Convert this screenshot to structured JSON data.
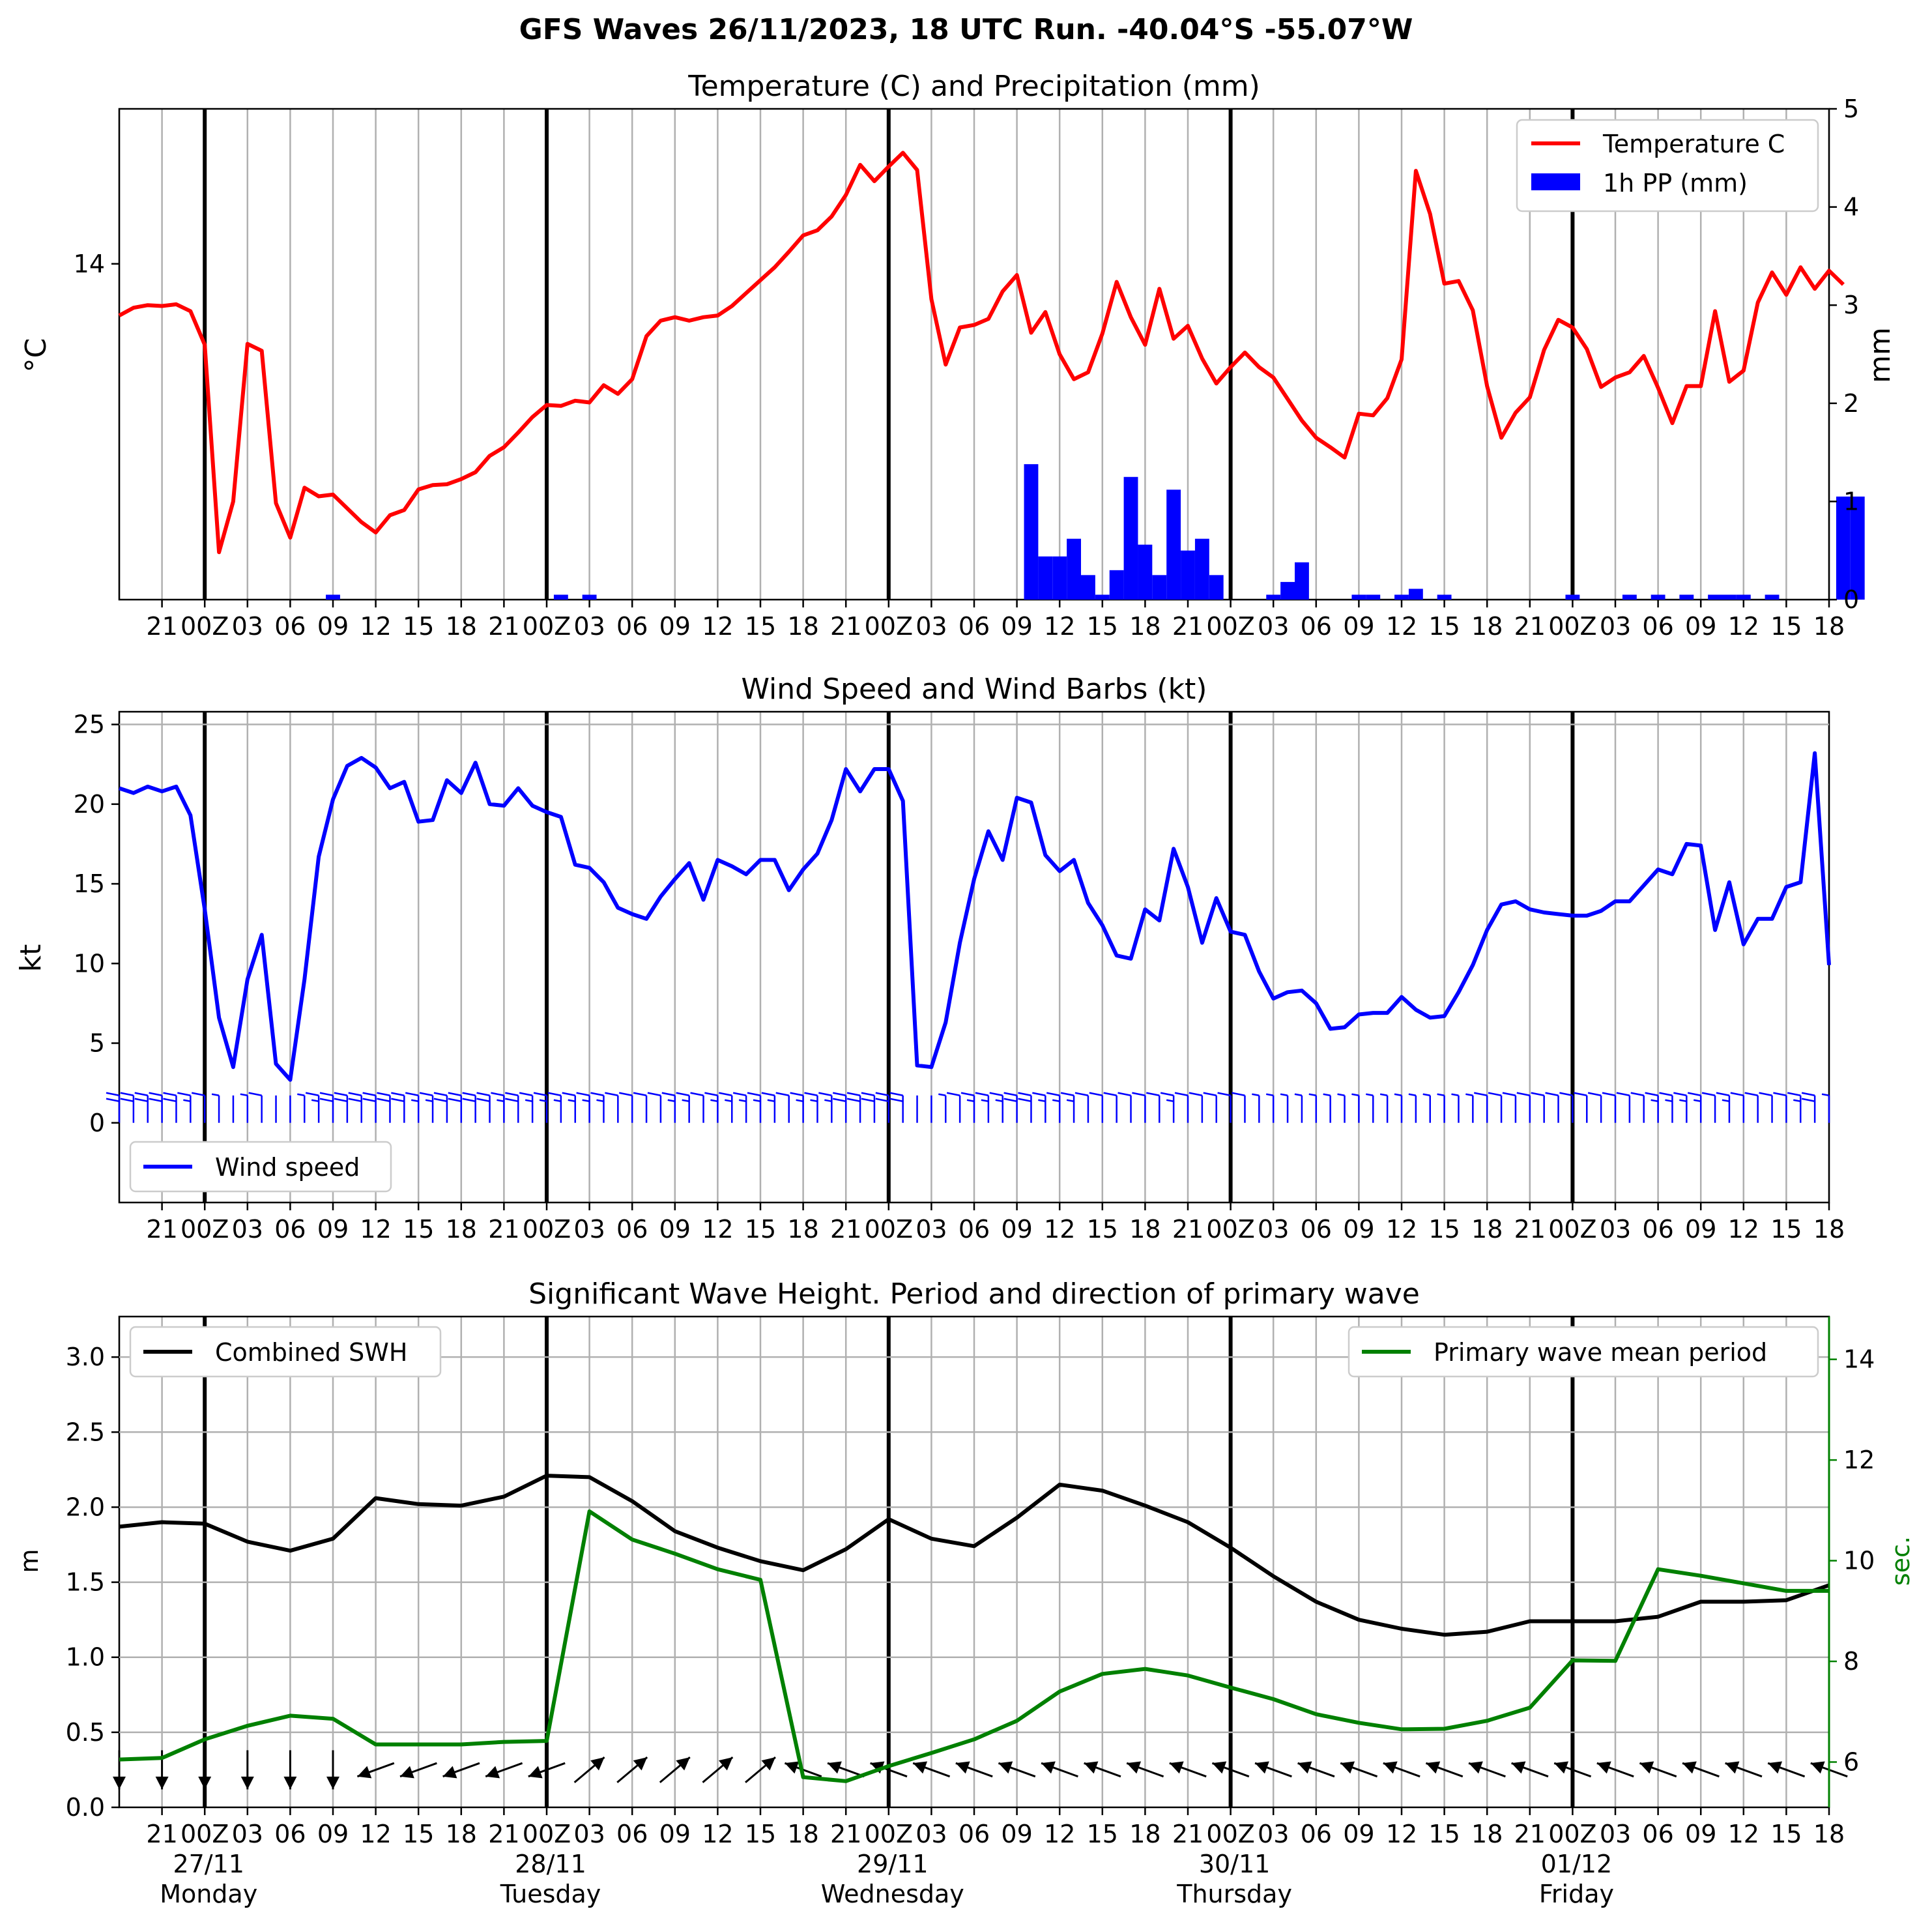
{
  "figure": {
    "title": "GFS Waves 26/11/2023, 18 UTC Run. -40.04°S -55.07°W"
  },
  "colors": {
    "temperature": "#ff0000",
    "precip": "#0000ff",
    "wind": "#0000ff",
    "swh": "#000000",
    "period": "#008000",
    "grid": "#b0b0b0"
  },
  "axes": {
    "x_ticks_top": [
      "21",
      "00Z",
      "03",
      "06",
      "09",
      "12",
      "15",
      "18",
      "21",
      "00Z",
      "03",
      "06",
      "09",
      "12",
      "15",
      "18",
      "21",
      "00Z",
      "03",
      "06",
      "09",
      "12",
      "15",
      "18",
      "21",
      "00Z",
      "03",
      "06",
      "09",
      "12",
      "15",
      "18",
      "21",
      "00Z",
      "03",
      "06",
      "09",
      "12",
      "15",
      "18"
    ],
    "x_ticks_bottom": [
      "21",
      "00Z",
      "03",
      "06",
      "09",
      "12",
      "15",
      "18",
      "21",
      "00Z",
      "03",
      "06",
      "09",
      "12",
      "15",
      "18",
      "21",
      "00Z",
      "03",
      "06",
      "09",
      "12",
      "15",
      "18",
      "21",
      "00Z",
      "03",
      "06",
      "09",
      "12",
      "15",
      "18",
      "21",
      "00Z",
      "03",
      "06",
      "09",
      "12",
      "15",
      "18"
    ],
    "day_dates": [
      "27/11",
      "28/11",
      "29/11",
      "30/11",
      "01/12"
    ],
    "day_names": [
      "Monday",
      "Tuesday",
      "Wednesday",
      "Thursday",
      "Friday"
    ]
  },
  "chart_data": [
    {
      "type": "line",
      "title": "Temperature (C) and Precipitation (mm)",
      "ylabel": "°C",
      "ylabel_right": "mm",
      "x_range_hours": [
        0,
        120
      ],
      "ylim": [
        10.1,
        15.8
      ],
      "y_ticks": [
        "14"
      ],
      "ylim_right": [
        0,
        5
      ],
      "y_ticks_right": [
        "0",
        "1",
        "2",
        "3",
        "4",
        "5"
      ],
      "legend": {
        "position": "top-right",
        "entries": [
          "Temperature C",
          "1h PP (mm)"
        ]
      },
      "series": [
        {
          "name": "Temperature C",
          "values": [
            13.4,
            13.49,
            13.52,
            13.51,
            13.53,
            13.45,
            13.06,
            10.65,
            11.24,
            13.07,
            12.99,
            11.22,
            10.82,
            11.4,
            11.3,
            11.32,
            11.16,
            11.0,
            10.88,
            11.08,
            11.14,
            11.38,
            11.43,
            11.44,
            11.5,
            11.58,
            11.77,
            11.87,
            12.04,
            12.22,
            12.36,
            12.35,
            12.41,
            12.39,
            12.59,
            12.49,
            12.66,
            13.16,
            13.34,
            13.38,
            13.34,
            13.38,
            13.4,
            13.51,
            13.66,
            13.81,
            13.96,
            14.14,
            14.33,
            14.39,
            14.55,
            14.8,
            15.15,
            14.96,
            15.13,
            15.29,
            15.09,
            13.59,
            12.83,
            13.26,
            13.29,
            13.36,
            13.68,
            13.87,
            13.2,
            13.44,
            12.95,
            12.66,
            12.74,
            13.19,
            13.79,
            13.38,
            13.06,
            13.71,
            13.13,
            13.28,
            12.9,
            12.61,
            12.8,
            12.97,
            12.8,
            12.68,
            12.43,
            12.18,
            11.98,
            11.87,
            11.75,
            12.26,
            12.24,
            12.44,
            12.89,
            15.08,
            14.58,
            13.77,
            13.8,
            13.46,
            12.58,
            11.98,
            12.27,
            12.45,
            13.0,
            13.35,
            13.26,
            13.01,
            12.57,
            12.68,
            12.74,
            12.93,
            12.56,
            12.15,
            12.58,
            12.58,
            13.45,
            12.63,
            12.76,
            13.55,
            13.9,
            13.64,
            13.96,
            13.71,
            13.92,
            13.76
          ]
        },
        {
          "name": "1h PP (mm)",
          "values": [
            0,
            0,
            0,
            0,
            0,
            0,
            0,
            0,
            0,
            0,
            0,
            0,
            0,
            0,
            0,
            0.05,
            0,
            0,
            0,
            0,
            0,
            0,
            0,
            0,
            0,
            0,
            0,
            0,
            0,
            0,
            0,
            0.05,
            0,
            0.05,
            0,
            0,
            0,
            0,
            0,
            0,
            0,
            0,
            0,
            0,
            0,
            0,
            0,
            0,
            0,
            0,
            0,
            0,
            0,
            0,
            0,
            0,
            0,
            0,
            0,
            0,
            0,
            0,
            0,
            0,
            1.38,
            0.44,
            0.44,
            0.62,
            0.25,
            0.05,
            0.3,
            1.25,
            0.56,
            0.25,
            1.12,
            0.5,
            0.62,
            0.25,
            0,
            0,
            0,
            0.05,
            0.18,
            0.38,
            0,
            0,
            0,
            0.05,
            0.05,
            0,
            0.05,
            0.11,
            0,
            0.05,
            0,
            0,
            0,
            0,
            0,
            0,
            0,
            0,
            0.05,
            0,
            0,
            0,
            0.05,
            0,
            0.05,
            0,
            0.05,
            0,
            0.05,
            0.05,
            0.05,
            0,
            0.05,
            0,
            0,
            0,
            0,
            1.05,
            1.05
          ]
        }
      ]
    },
    {
      "type": "line",
      "title": "Wind Speed and Wind Barbs (kt)",
      "ylabel": "kt",
      "x_range_hours": [
        0,
        120
      ],
      "ylim": [
        -5,
        25.8
      ],
      "y_ticks": [
        "0",
        "5",
        "10",
        "15",
        "20",
        "25"
      ],
      "legend": {
        "position": "bottom-left",
        "entries": [
          "Wind speed"
        ]
      },
      "series": [
        {
          "name": "Wind speed",
          "values": [
            21.0,
            20.7,
            21.1,
            20.8,
            21.1,
            19.3,
            13.4,
            6.6,
            3.5,
            9.0,
            11.8,
            3.7,
            2.7,
            9.0,
            16.7,
            20.3,
            22.4,
            22.9,
            22.3,
            21.0,
            21.4,
            18.9,
            19.0,
            21.5,
            20.7,
            22.6,
            20.0,
            19.9,
            21.0,
            19.9,
            19.5,
            19.2,
            16.2,
            16.0,
            15.1,
            13.5,
            13.1,
            12.8,
            14.2,
            15.3,
            16.3,
            14.0,
            16.5,
            16.1,
            15.6,
            16.5,
            16.5,
            14.6,
            15.9,
            16.9,
            19.0,
            22.2,
            20.8,
            22.2,
            22.2,
            20.2,
            3.6,
            3.5,
            6.3,
            11.3,
            15.3,
            18.3,
            16.5,
            20.4,
            20.1,
            16.8,
            15.8,
            16.5,
            13.8,
            12.4,
            10.5,
            10.3,
            13.4,
            12.7,
            17.2,
            14.8,
            11.3,
            14.1,
            12.0,
            11.8,
            9.5,
            7.8,
            8.2,
            8.3,
            7.5,
            5.9,
            6.0,
            6.8,
            6.9,
            6.9,
            7.9,
            7.1,
            6.6,
            6.7,
            8.2,
            9.9,
            12.1,
            13.7,
            13.9,
            13.4,
            13.2,
            13.1,
            13.0,
            13.0,
            13.3,
            13.9,
            13.9,
            14.9,
            15.9,
            15.6,
            17.5,
            17.4,
            12.1,
            15.1,
            11.2,
            12.8,
            12.8,
            14.8,
            15.1,
            23.2,
            9.9
          ]
        }
      ],
      "barbs": "wind barbs drawn along y = 0 at each hourly step"
    },
    {
      "type": "line",
      "title": "Significant Wave Height. Period and direction of primary wave",
      "ylabel": "m",
      "ylabel_right": "sec.",
      "x_range_hours": [
        0,
        120
      ],
      "ylim": [
        0,
        3.27
      ],
      "y_ticks": [
        "0.0",
        "0.5",
        "1.0",
        "1.5",
        "2.0",
        "2.5",
        "3.0"
      ],
      "ylim_right": [
        5.1,
        14.85
      ],
      "y_ticks_right": [
        "6",
        "8",
        "10",
        "12",
        "14"
      ],
      "legend": [
        {
          "position": "top-left",
          "entries": [
            "Combined SWH"
          ]
        },
        {
          "position": "top-right",
          "entries": [
            "Primary wave mean period"
          ]
        }
      ],
      "x_hours": [
        0,
        3,
        6,
        9,
        12,
        15,
        18,
        21,
        24,
        27,
        30,
        33,
        36,
        39,
        42,
        45,
        48,
        51,
        54,
        57,
        60,
        63,
        66,
        69,
        72,
        75,
        78,
        81,
        84,
        87,
        90,
        93,
        96,
        99,
        102,
        105,
        108,
        111,
        114,
        117,
        120
      ],
      "series": [
        {
          "name": "Combined SWH",
          "values": [
            1.87,
            1.9,
            1.89,
            1.77,
            1.71,
            1.79,
            2.06,
            2.02,
            2.01,
            2.07,
            2.21,
            2.2,
            2.04,
            1.84,
            1.73,
            1.64,
            1.58,
            1.72,
            1.92,
            1.79,
            1.74,
            1.93,
            2.15,
            2.11,
            2.01,
            1.9,
            1.73,
            1.54,
            1.37,
            1.25,
            1.19,
            1.15,
            1.17,
            1.24,
            1.24,
            1.24,
            1.27,
            1.37,
            1.37,
            1.38,
            1.48
          ]
        },
        {
          "name": "Primary wave mean period",
          "values": [
            6.05,
            6.08,
            6.45,
            6.72,
            6.92,
            6.86,
            6.35,
            6.35,
            6.35,
            6.4,
            6.42,
            10.98,
            10.42,
            10.14,
            9.83,
            9.62,
            5.7,
            5.62,
            5.92,
            6.18,
            6.45,
            6.82,
            7.4,
            7.75,
            7.85,
            7.72,
            7.48,
            7.25,
            6.95,
            6.78,
            6.65,
            6.66,
            6.82,
            7.08,
            8.02,
            8.01,
            9.83,
            9.7,
            9.55,
            9.4,
            9.4
          ]
        }
      ],
      "arrows": "primary wave direction arrows along the 0.25 m level every 3 h"
    }
  ]
}
